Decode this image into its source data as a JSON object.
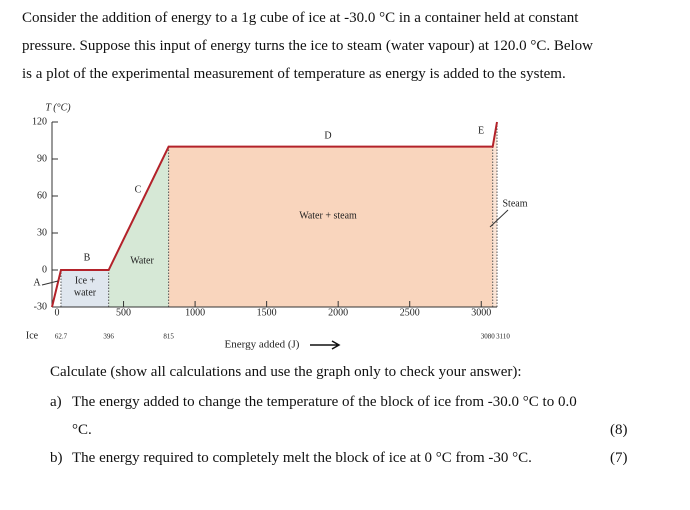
{
  "intro": [
    "Consider the addition of energy to a 1g cube of ice at -30.0 °C in a container held at constant",
    "pressure. Suppose this input of energy turns the ice to steam (water vapour) at 120.0 °C. Below",
    "is a plot of the experimental measurement of temperature as energy is added to the system."
  ],
  "chart_data": {
    "type": "line",
    "y_label": "T (°C)",
    "x_label": "Energy added (J)",
    "x": [
      0,
      62.7,
      396,
      815,
      3080,
      3110
    ],
    "series": [
      {
        "name": "Temperature",
        "color": "#b3222a",
        "values": [
          -30,
          0,
          0,
          100,
          100,
          120
        ]
      }
    ],
    "fill_colors": [
      "#ffffff",
      "#dfe6ee",
      "#d6e8d6",
      "#f9d5bd",
      "#fbe4d5"
    ],
    "xlim": [
      0,
      3110
    ],
    "ylim": [
      -30,
      120
    ],
    "xticks": [
      500,
      1000,
      1500,
      2000,
      2500,
      3000
    ],
    "yticks": [
      -30,
      0,
      30,
      60,
      90,
      120
    ],
    "annotations": [
      "A",
      "B",
      "C",
      "D",
      "E",
      "Ice +",
      "water",
      "Water",
      "Water + steam",
      "Steam",
      "Ice"
    ]
  },
  "question": {
    "prompt": "Calculate (show all calculations and use the graph only to check your answer):",
    "parts": [
      {
        "label": "a)",
        "lines": [
          "The energy added to change the temperature of the block of ice from -30.0 °C to 0.0",
          "°C."
        ],
        "marks": "(8)"
      },
      {
        "label": "b)",
        "lines": [
          "The energy required to completely melt the block of ice at 0 °C from -30 °C."
        ],
        "marks": "(7)"
      }
    ]
  }
}
